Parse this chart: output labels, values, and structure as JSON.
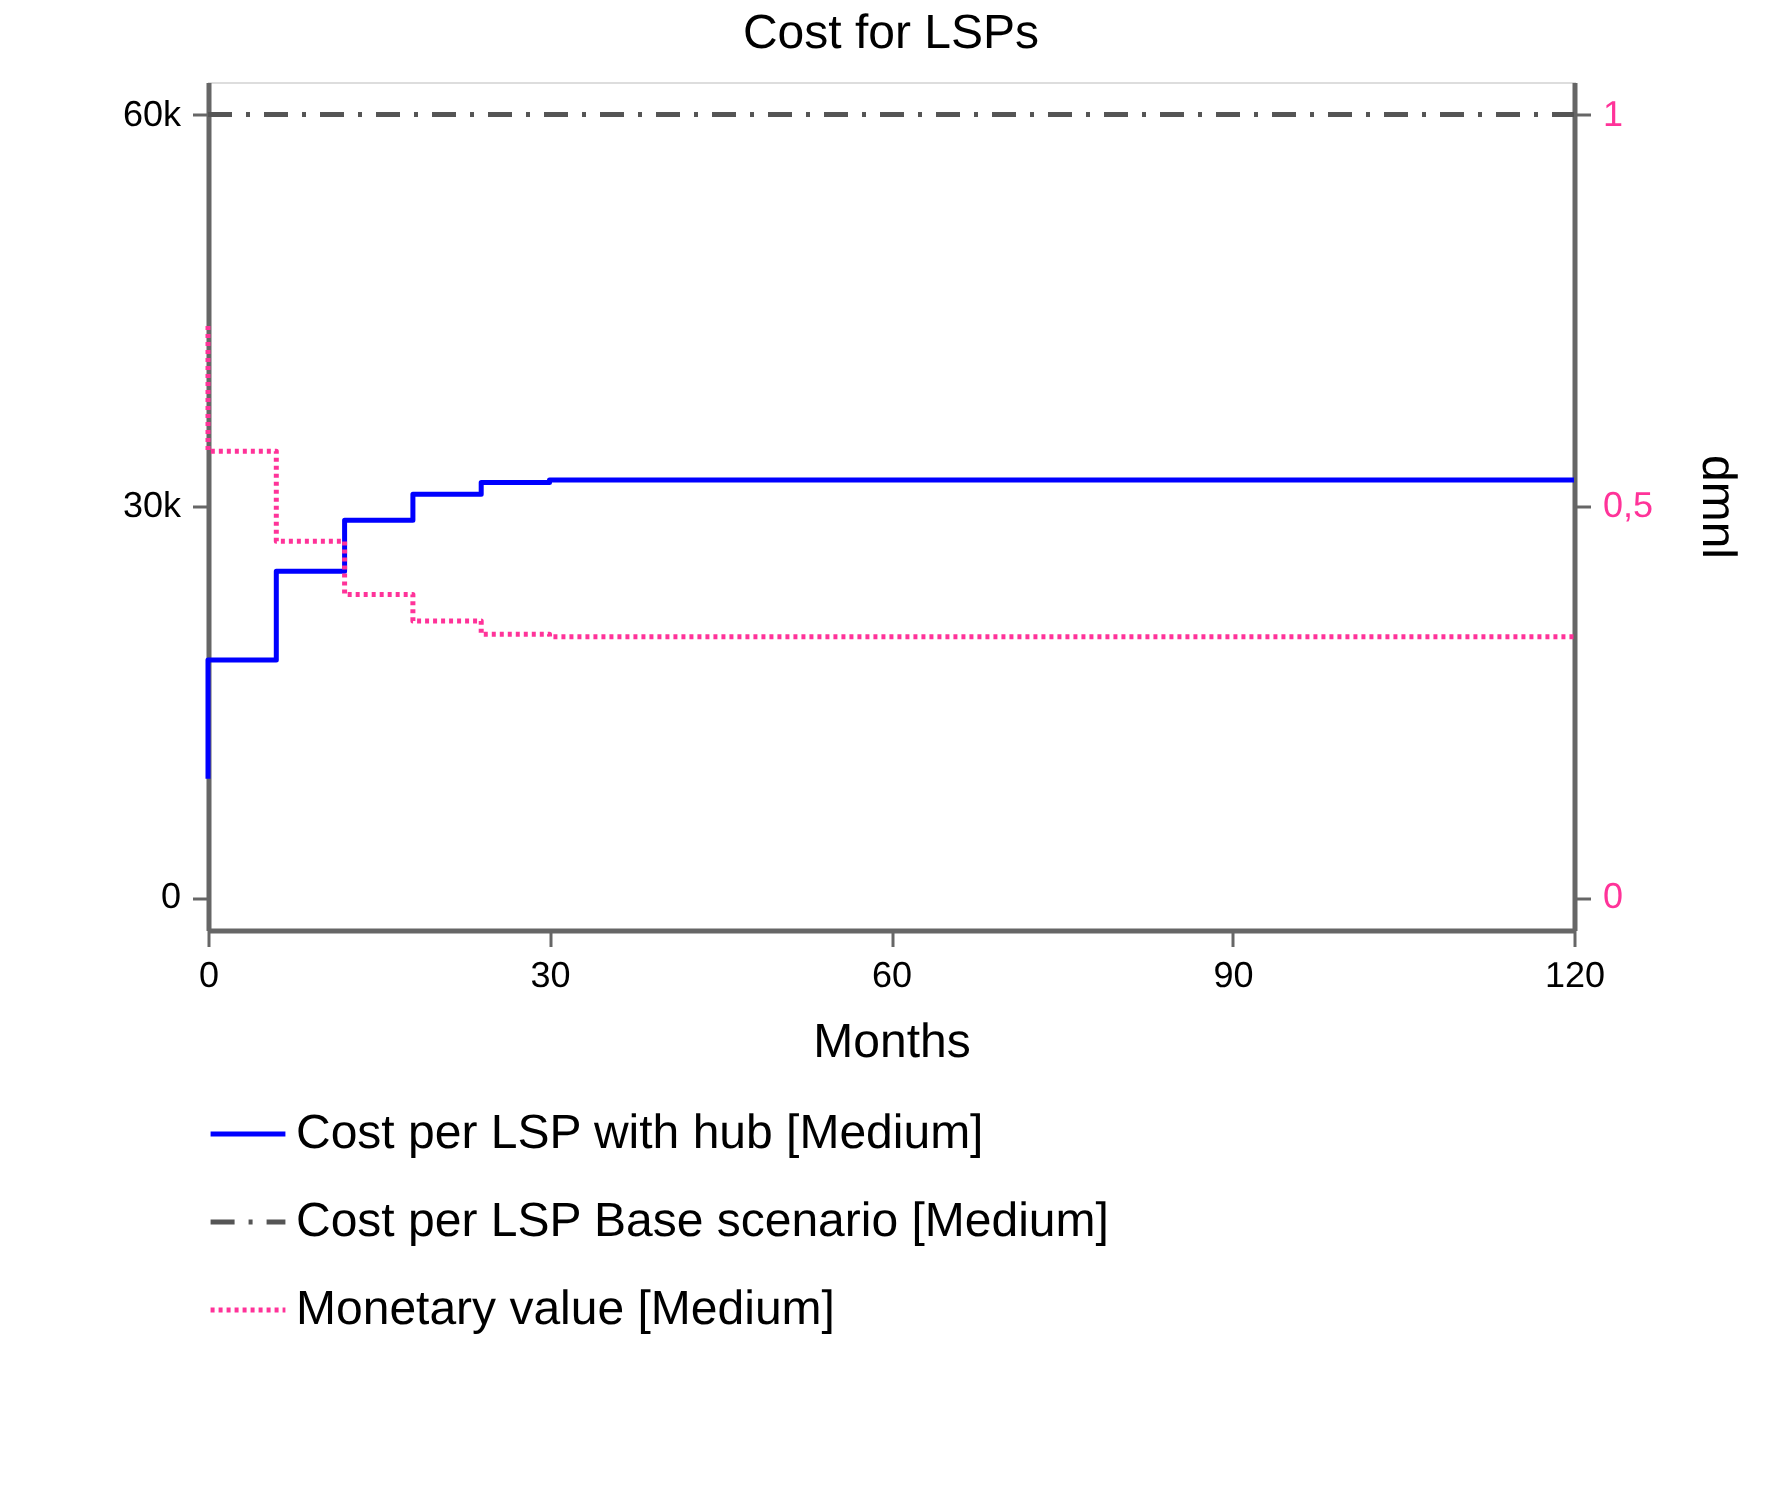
{
  "chart_data": {
    "type": "step",
    "title": "Cost for LSPs",
    "xlabel": "Months",
    "y2label": "dmnl",
    "xlim": [
      0,
      120
    ],
    "xticks": [
      0,
      30,
      60,
      90,
      120
    ],
    "ylim": [
      -2500,
      62500
    ],
    "yticks": [
      0,
      {
        "value": 30000,
        "label": "30k"
      },
      {
        "value": 60000,
        "label": "60k"
      }
    ],
    "y2lim": [
      -0.042,
      1.042
    ],
    "y2ticks": [
      0,
      {
        "value": 0.5,
        "label": "0,5"
      },
      1
    ],
    "grid": false,
    "legend": "bottom",
    "series": [
      {
        "name": "Cost per LSP with hub [Medium]",
        "color": "#0000ff",
        "line_style": "solid",
        "x": [
          0,
          0,
          6,
          12,
          18,
          24,
          30,
          120
        ],
        "values": [
          9100,
          18200,
          25000,
          28900,
          30900,
          31800,
          32000,
          32000
        ]
      },
      {
        "name": "Cost per LSP Base scenario [Medium]",
        "color": "#555555",
        "line_style": "dashed",
        "x": [
          0,
          120
        ],
        "values": [
          60000,
          60000
        ]
      },
      {
        "name": "Monetary value [Medium]",
        "color": "#ff3399",
        "line_style": "dotted",
        "axis": "y2",
        "x": [
          0,
          0,
          6,
          12,
          18,
          24,
          30,
          120
        ],
        "values": [
          0.73,
          0.57,
          0.455,
          0.387,
          0.353,
          0.336,
          0.333,
          0.333
        ]
      }
    ]
  }
}
